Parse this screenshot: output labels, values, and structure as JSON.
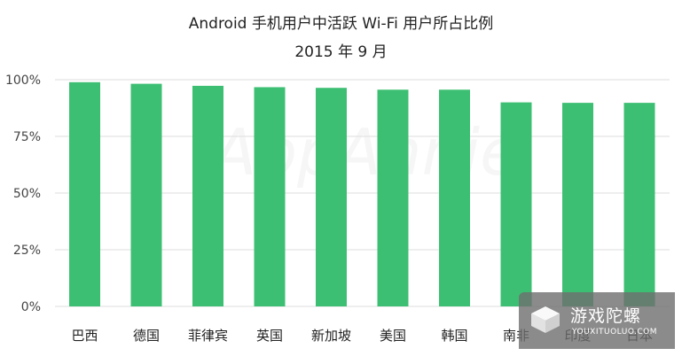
{
  "title_line1": "Android 手机用户中活跃 Wi-Fi 用户所占比例",
  "title_line2": "2015 年 9 月",
  "chart_data": {
    "type": "bar",
    "title": "Android 手机用户中活跃 Wi-Fi 用户所占比例",
    "subtitle": "2015 年 9 月",
    "categories": [
      "巴西",
      "德国",
      "菲律宾",
      "英国",
      "新加坡",
      "美国",
      "韩国",
      "南非",
      "印度",
      "日本"
    ],
    "values": [
      98.9,
      98.2,
      97.3,
      96.7,
      96.4,
      95.6,
      95.6,
      90.0,
      89.8,
      89.8
    ],
    "yticks": [
      "0%",
      "25%",
      "50%",
      "75%",
      "100%"
    ],
    "ytick_values": [
      0,
      25,
      50,
      75,
      100
    ],
    "ylim": [
      0,
      100
    ],
    "xlabel": "",
    "ylabel": "",
    "grid": true,
    "bar_color": "#3dbf73",
    "grid_color": "#dddddd"
  },
  "background_watermark": "AppAnnie",
  "watermark": {
    "cn": "游戏陀螺",
    "en": "YOUXITUOLUO.COM"
  }
}
